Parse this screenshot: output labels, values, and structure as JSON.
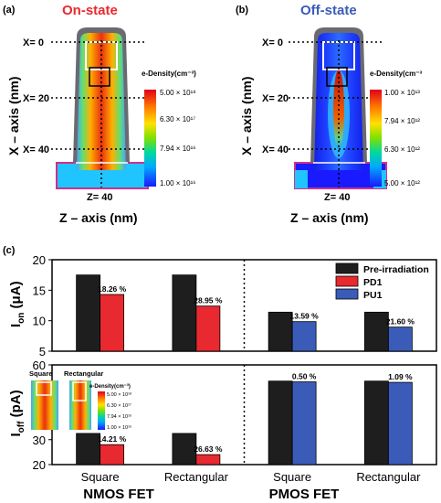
{
  "panels": {
    "a": {
      "label": "(a)",
      "state": "On-state",
      "state_color": "#e8292f",
      "x_ticks": [
        "X= 0",
        "X= 20",
        "X= 40"
      ],
      "z_label": "Z= 40",
      "x_axis_title": "X – axis (nm)",
      "z_axis_title": "Z – axis (nm)",
      "colorbar_title": "e-Density(cm⁻³)",
      "colorbar_ticks": [
        "5.00 × 10¹⁸",
        "6.30 × 10¹⁷",
        "7.94 × 10¹⁶",
        "1.00 × 10¹⁶"
      ]
    },
    "b": {
      "label": "(b)",
      "state": "Off-state",
      "state_color": "#3a5bb8",
      "x_ticks": [
        "X= 0",
        "X= 20",
        "X= 40"
      ],
      "z_label": "Z= 40",
      "x_axis_title": "X – axis (nm)",
      "z_axis_title": "Z – axis (nm)",
      "colorbar_title": "e-Density(cm⁻³",
      "colorbar_ticks": [
        "1.00 × 10¹³",
        "7.94 × 10¹²",
        "6.30 × 10¹²",
        "5.00 × 10¹²"
      ]
    },
    "c": {
      "label": "(c)",
      "inset_labels": [
        "Square",
        "Rectangular"
      ],
      "inset_colorbar_title": "e-Density(cm⁻³)",
      "inset_colorbar_ticks": [
        "5.00 × 10¹⁸",
        "6.30 × 10¹⁷",
        "7.94 × 10¹⁶",
        "1.00 × 10¹⁶"
      ],
      "group_labels": [
        "NMOS FET",
        "PMOS FET"
      ]
    }
  },
  "colors": {
    "pre": "#1e1e1e",
    "pd1": "#e8292f",
    "pu1": "#3a5bb8"
  },
  "chart_data": [
    {
      "type": "bar",
      "categories": [
        "Square",
        "Rectangular",
        "Square",
        "Rectangular"
      ],
      "ylabel": "I_on (μA)",
      "ylim": [
        5,
        20
      ],
      "yticks": [
        5,
        10,
        15,
        20
      ],
      "legend": [
        "Pre-irradiation",
        "PD1",
        "PU1"
      ],
      "legend_position": "top-right",
      "series": [
        {
          "name": "Pre-irradiation",
          "values": [
            17.5,
            17.5,
            11.4,
            11.4
          ]
        },
        {
          "name": "PD1",
          "values": [
            14.3,
            12.4,
            null,
            null
          ]
        },
        {
          "name": "PU1",
          "values": [
            null,
            null,
            9.85,
            8.95
          ]
        }
      ],
      "annotations": [
        "18.26 %",
        "28.95 %",
        "13.59 %",
        "21.60 %"
      ]
    },
    {
      "type": "bar",
      "categories": [
        "Square",
        "Rectangular",
        "Square",
        "Rectangular"
      ],
      "ylabel": "I_off (pA)",
      "ylim": [
        20,
        60
      ],
      "yticks": [
        20,
        30,
        40,
        50,
        60
      ],
      "series": [
        {
          "name": "Pre-irradiation",
          "values": [
            32.5,
            32.5,
            53.5,
            53.5
          ]
        },
        {
          "name": "PD1",
          "values": [
            28.0,
            24.0,
            null,
            null
          ]
        },
        {
          "name": "PU1",
          "values": [
            null,
            null,
            53.2,
            53.0
          ]
        }
      ],
      "annotations": [
        "14.21 %",
        "26.63 %",
        "0.50 %",
        "1.09 %"
      ]
    }
  ]
}
